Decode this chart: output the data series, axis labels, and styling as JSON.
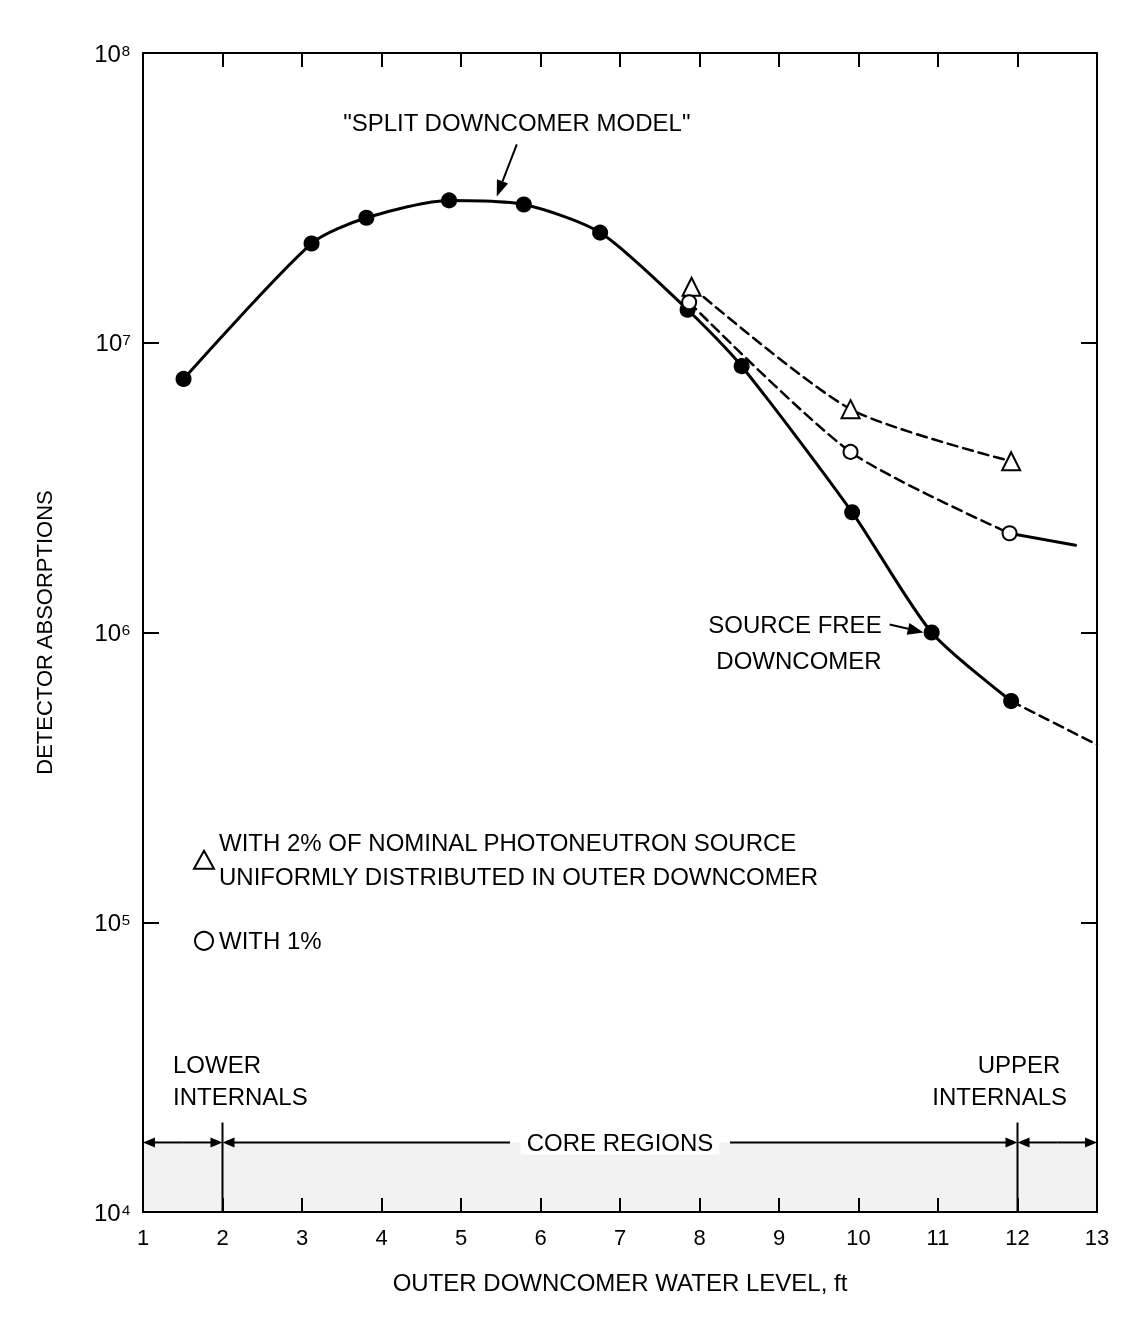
{
  "chart_data": {
    "type": "line",
    "xlabel": "OUTER DOWNCOMER WATER LEVEL, ft",
    "ylabel": "DETECTOR ABSORPTIONS",
    "log": "y",
    "grid": false,
    "legend": "left",
    "xlim": [
      1,
      13
    ],
    "xticks": [
      1,
      2,
      3,
      4,
      5,
      6,
      7,
      8,
      9,
      10,
      11,
      12,
      13
    ],
    "ylim": [
      10000,
      100000000
    ],
    "yticks": [
      {
        "value": 10000,
        "label": "10⁴"
      },
      {
        "value": 100000,
        "label": "10⁵"
      },
      {
        "value": 1000000,
        "label": "10⁶"
      },
      {
        "value": 10000000,
        "label": "10⁷"
      },
      {
        "value": 100000000,
        "label": "10⁸"
      }
    ],
    "series": [
      {
        "color": "#000000",
        "marker": "circle",
        "line_style": "solid",
        "x": [
          1.51,
          3.12,
          3.81,
          4.85,
          5.79,
          6.75,
          7.85,
          8.53,
          9.92,
          10.92,
          11.92
        ],
        "values": [
          7500000,
          22000000,
          27000000,
          31000000,
          30000000,
          24000000,
          13000000,
          8300000,
          2600000,
          1000000,
          580000
        ]
      },
      {
        "color": "#000000",
        "marker": "none",
        "line_style": "dashed",
        "x": [
          11.92,
          13
        ],
        "values": [
          580000,
          410000
        ]
      },
      {
        "name": "WITH 2% OF NOMINAL PHOTONEUTRON SOURCE\nUNIFORMLY DISTRIBUTED IN OUTER DOWNCOMER",
        "color": "#000000",
        "marker": "triangle",
        "line_style": "dashed",
        "x": [
          7.9,
          9.9,
          11.92
        ],
        "values": [
          15600000,
          5900000,
          3900000
        ]
      },
      {
        "name": "WITH 1%",
        "color": "#000000",
        "marker": "circle",
        "line_style": "dashed",
        "x": [
          7.87,
          9.9,
          11.9
        ],
        "values": [
          13800000,
          4200000,
          2200000
        ]
      },
      {
        "color": "#000000",
        "marker": "none",
        "line_style": "solid",
        "x": [
          11.9,
          12.73
        ],
        "values": [
          2200000,
          2000000
        ]
      }
    ],
    "bands": [
      {
        "axis": "x",
        "from": 1,
        "to": 2,
        "label": "LOWER INTERNALS"
      },
      {
        "axis": "x",
        "from": 2,
        "to": 12,
        "label": "CORE REGIONS"
      },
      {
        "axis": "x",
        "from": 12,
        "to": 13,
        "label": "UPPER INTERNALS"
      }
    ],
    "annotations": [
      {
        "text": "\"SPLIT DOWNCOMER MODEL\"",
        "x": 5.45,
        "y": 31000000
      },
      {
        "text": "SOURCE FREE\nDOWNCOMER",
        "x": 10.92,
        "y": 1000000
      }
    ]
  }
}
